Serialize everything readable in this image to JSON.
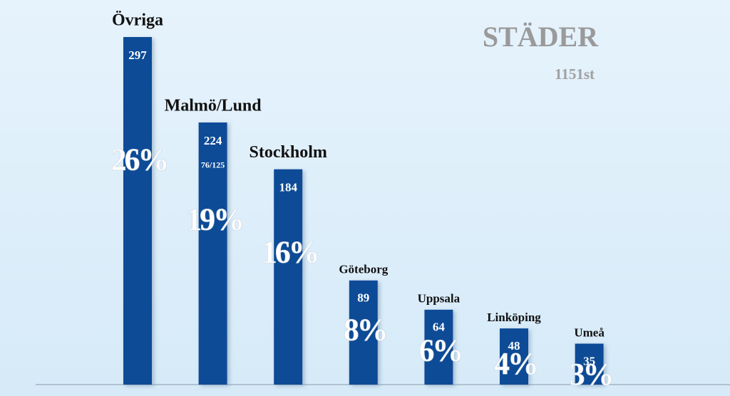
{
  "chart_data": {
    "type": "bar",
    "title": "STÄDER",
    "subtitle": "1151st",
    "categories": [
      "Övriga",
      "Malmö/Lund",
      "Stockholm",
      "Göteborg",
      "Uppsala",
      "Linköping",
      "Umeå"
    ],
    "values": [
      297,
      224,
      184,
      89,
      64,
      48,
      35
    ],
    "percent_labels": [
      "26%",
      "19%",
      "16%",
      "8%",
      "6%",
      "4%",
      "3%"
    ],
    "annotations": [
      {
        "category": "Malmö/Lund",
        "text": "76/125"
      }
    ],
    "color": "#0f4c96"
  }
}
